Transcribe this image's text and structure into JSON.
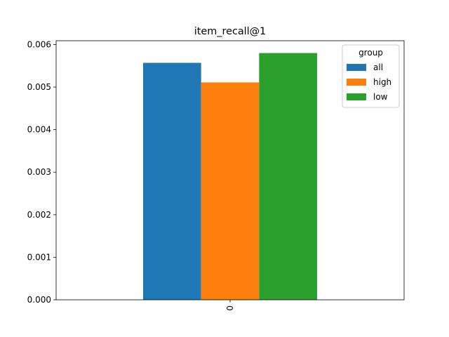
{
  "chart_data": {
    "type": "bar",
    "title": "item_recall@1",
    "xlabel": "",
    "ylabel": "",
    "categories": [
      "0"
    ],
    "series": [
      {
        "name": "all",
        "values": [
          0.00557
        ],
        "color": "#1f77b4"
      },
      {
        "name": "high",
        "values": [
          0.00511
        ],
        "color": "#ff7f0e"
      },
      {
        "name": "low",
        "values": [
          0.0058
        ],
        "color": "#2ca02c"
      }
    ],
    "ylim": [
      0,
      0.00609
    ],
    "yticks": [
      "0.000",
      "0.001",
      "0.002",
      "0.003",
      "0.004",
      "0.005",
      "0.006"
    ],
    "legend": {
      "title": "group",
      "placement": "top-right"
    },
    "grid": false
  }
}
